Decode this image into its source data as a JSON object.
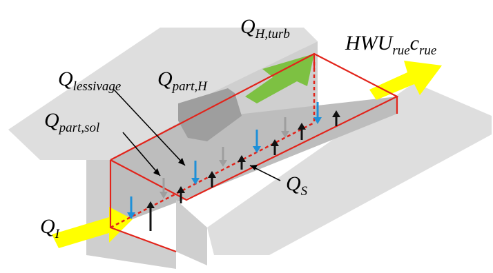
{
  "colors": {
    "ground": "#dedede",
    "wall_front": "#cfcfcf",
    "wall_side": "#bdbdbd",
    "box_edge": "#e2231a",
    "inflow_arrow": "#ffff00",
    "turbulent_arrow": "#7dc142",
    "deposition_arrow": "#9e9e9e",
    "rain_arrow": "#1e90d8",
    "source_arrow": "#111111"
  },
  "labels": {
    "q_i": {
      "main": "Q",
      "sub": "I"
    },
    "q_h_turb": {
      "main": "Q",
      "sub": "H,turb"
    },
    "hwu": {
      "main": "HWU",
      "sub1": "rue",
      "c": "c",
      "sub2": "rue"
    },
    "q_lessivage": {
      "main": "Q",
      "sub": "lessivage"
    },
    "q_part_h": {
      "main": "Q",
      "sub": "part,H"
    },
    "q_part_sol": {
      "main": "Q",
      "sub": "part,sol"
    },
    "q_s": {
      "main": "Q",
      "sub": "S"
    }
  }
}
